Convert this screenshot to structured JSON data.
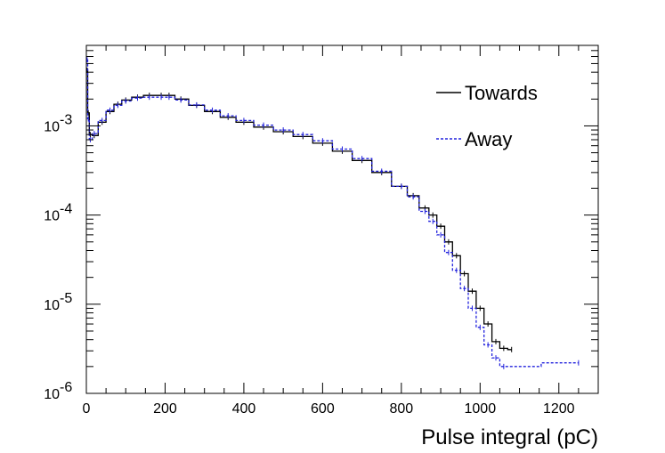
{
  "chart_data": {
    "type": "line",
    "title": "",
    "xlabel": "Pulse integral (pC)",
    "ylabel": "",
    "xlim": [
      0,
      1300
    ],
    "ylim": [
      1e-06,
      0.008
    ],
    "yscale": "log",
    "grid": false,
    "legend_position": "top-right",
    "x_ticks": [
      0,
      200,
      400,
      600,
      800,
      1000,
      1200
    ],
    "y_ticks": [
      {
        "value": 0.001,
        "base": "10",
        "exp": "-3"
      },
      {
        "value": 0.0001,
        "base": "10",
        "exp": "-4"
      },
      {
        "value": 1e-05,
        "base": "10",
        "exp": "-5"
      },
      {
        "value": 1e-06,
        "base": "10",
        "exp": "-6"
      }
    ],
    "series": [
      {
        "name": "Towards",
        "color": "#000000",
        "style": "solid",
        "x": [
          2,
          5,
          10,
          20,
          40,
          60,
          80,
          100,
          130,
          160,
          190,
          210,
          240,
          280,
          320,
          360,
          400,
          450,
          500,
          550,
          600,
          650,
          700,
          750,
          800,
          830,
          860,
          880,
          900,
          920,
          940,
          960,
          980,
          1000,
          1020,
          1040,
          1060,
          1080
        ],
        "y": [
          0.0042,
          0.0014,
          0.0008,
          0.00078,
          0.0011,
          0.00145,
          0.00175,
          0.00195,
          0.0021,
          0.0022,
          0.0022,
          0.0022,
          0.002,
          0.0017,
          0.00145,
          0.00125,
          0.0011,
          0.00097,
          0.00086,
          0.00076,
          0.00064,
          0.00052,
          0.00041,
          0.0003,
          0.00021,
          0.000165,
          0.00012,
          0.0001,
          7.5e-05,
          5e-05,
          3.5e-05,
          2.2e-05,
          1.4e-05,
          9e-06,
          6e-06,
          3.8e-06,
          3.2e-06,
          3.1e-06
        ]
      },
      {
        "name": "Away",
        "color": "#2222dd",
        "style": "dashed",
        "x": [
          2,
          5,
          10,
          20,
          40,
          60,
          80,
          100,
          130,
          160,
          190,
          210,
          240,
          280,
          320,
          360,
          400,
          450,
          500,
          550,
          600,
          650,
          700,
          750,
          800,
          830,
          860,
          880,
          900,
          920,
          940,
          960,
          980,
          1000,
          1020,
          1040,
          1060,
          1250
        ],
        "y": [
          0.0055,
          0.0012,
          0.0007,
          0.00082,
          0.00115,
          0.0015,
          0.0017,
          0.0019,
          0.00205,
          0.0021,
          0.0021,
          0.0021,
          0.00195,
          0.00172,
          0.0015,
          0.0013,
          0.00115,
          0.00102,
          0.0009,
          0.0008,
          0.00068,
          0.00055,
          0.00043,
          0.00031,
          0.00021,
          0.00016,
          0.00011,
          8.5e-05,
          6e-05,
          3.8e-05,
          2.4e-05,
          1.5e-05,
          9e-06,
          5.5e-06,
          3.5e-06,
          2.5e-06,
          2e-06,
          2.2e-06
        ]
      }
    ]
  }
}
